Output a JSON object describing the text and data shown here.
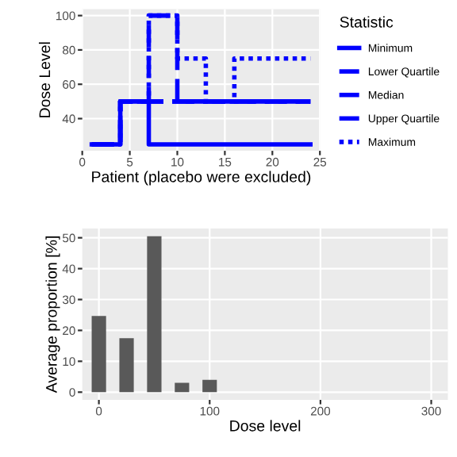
{
  "chart_data": [
    {
      "type": "step",
      "xlabel": "Patient (placebo were excluded)",
      "ylabel": "Dose Level",
      "legend_title": "Statistic",
      "legend": "right",
      "grid": true,
      "xlim": [
        0,
        25
      ],
      "xticks": [
        0,
        5,
        10,
        15,
        20,
        25
      ],
      "ylim": [
        21.25,
        103.75
      ],
      "yticks": [
        40,
        60,
        80,
        100
      ],
      "x": [
        1,
        2,
        3,
        4,
        5,
        6,
        7,
        8,
        9,
        10,
        11,
        12,
        13,
        14,
        15,
        16,
        17,
        18,
        19,
        20,
        21,
        22,
        23,
        24
      ],
      "series": [
        {
          "name": "Minimum",
          "color": "#0000ff",
          "line_style": "solid",
          "values": [
            25,
            25,
            25,
            50,
            50,
            50,
            25,
            25,
            25,
            25,
            25,
            25,
            25,
            25,
            25,
            25,
            25,
            25,
            25,
            25,
            25,
            25,
            25,
            25
          ]
        },
        {
          "name": "Lower Quartile",
          "color": "#0000ff",
          "line_style": "dashed",
          "values": [
            25,
            25,
            25,
            50,
            50,
            50,
            50,
            50,
            50,
            50,
            50,
            50,
            50,
            50,
            50,
            50,
            50,
            50,
            50,
            50,
            50,
            50,
            50,
            50
          ]
        },
        {
          "name": "Median",
          "color": "#0000ff",
          "line_style": "dashed",
          "values": [
            25,
            25,
            25,
            50,
            50,
            50,
            50,
            50,
            50,
            50,
            50,
            50,
            50,
            50,
            50,
            50,
            50,
            50,
            50,
            50,
            50,
            50,
            50,
            50
          ]
        },
        {
          "name": "Upper Quartile",
          "color": "#0000ff",
          "line_style": "dashed",
          "values": [
            25,
            25,
            25,
            50,
            50,
            50,
            100,
            100,
            100,
            50,
            50,
            50,
            50,
            50,
            50,
            50,
            50,
            50,
            50,
            50,
            50,
            50,
            50,
            50
          ]
        },
        {
          "name": "Maximum",
          "color": "#0000ff",
          "line_style": "dotted",
          "values": [
            25,
            25,
            25,
            50,
            50,
            50,
            100,
            100,
            100,
            75,
            75,
            75,
            50,
            50,
            50,
            75,
            75,
            75,
            75,
            75,
            75,
            75,
            75,
            75
          ]
        }
      ]
    },
    {
      "type": "bar",
      "xlabel": "Dose level",
      "ylabel": "Average proportion [%]",
      "grid": true,
      "xlim": [
        -15,
        315
      ],
      "xticks": [
        0,
        100,
        200,
        300
      ],
      "ylim": [
        -2.5,
        53
      ],
      "yticks": [
        0,
        10,
        20,
        30,
        40,
        50
      ],
      "x": [
        0,
        25,
        50,
        75,
        100
      ],
      "color": "#595959",
      "values": [
        24.7,
        17.5,
        50.5,
        3,
        4
      ]
    }
  ]
}
